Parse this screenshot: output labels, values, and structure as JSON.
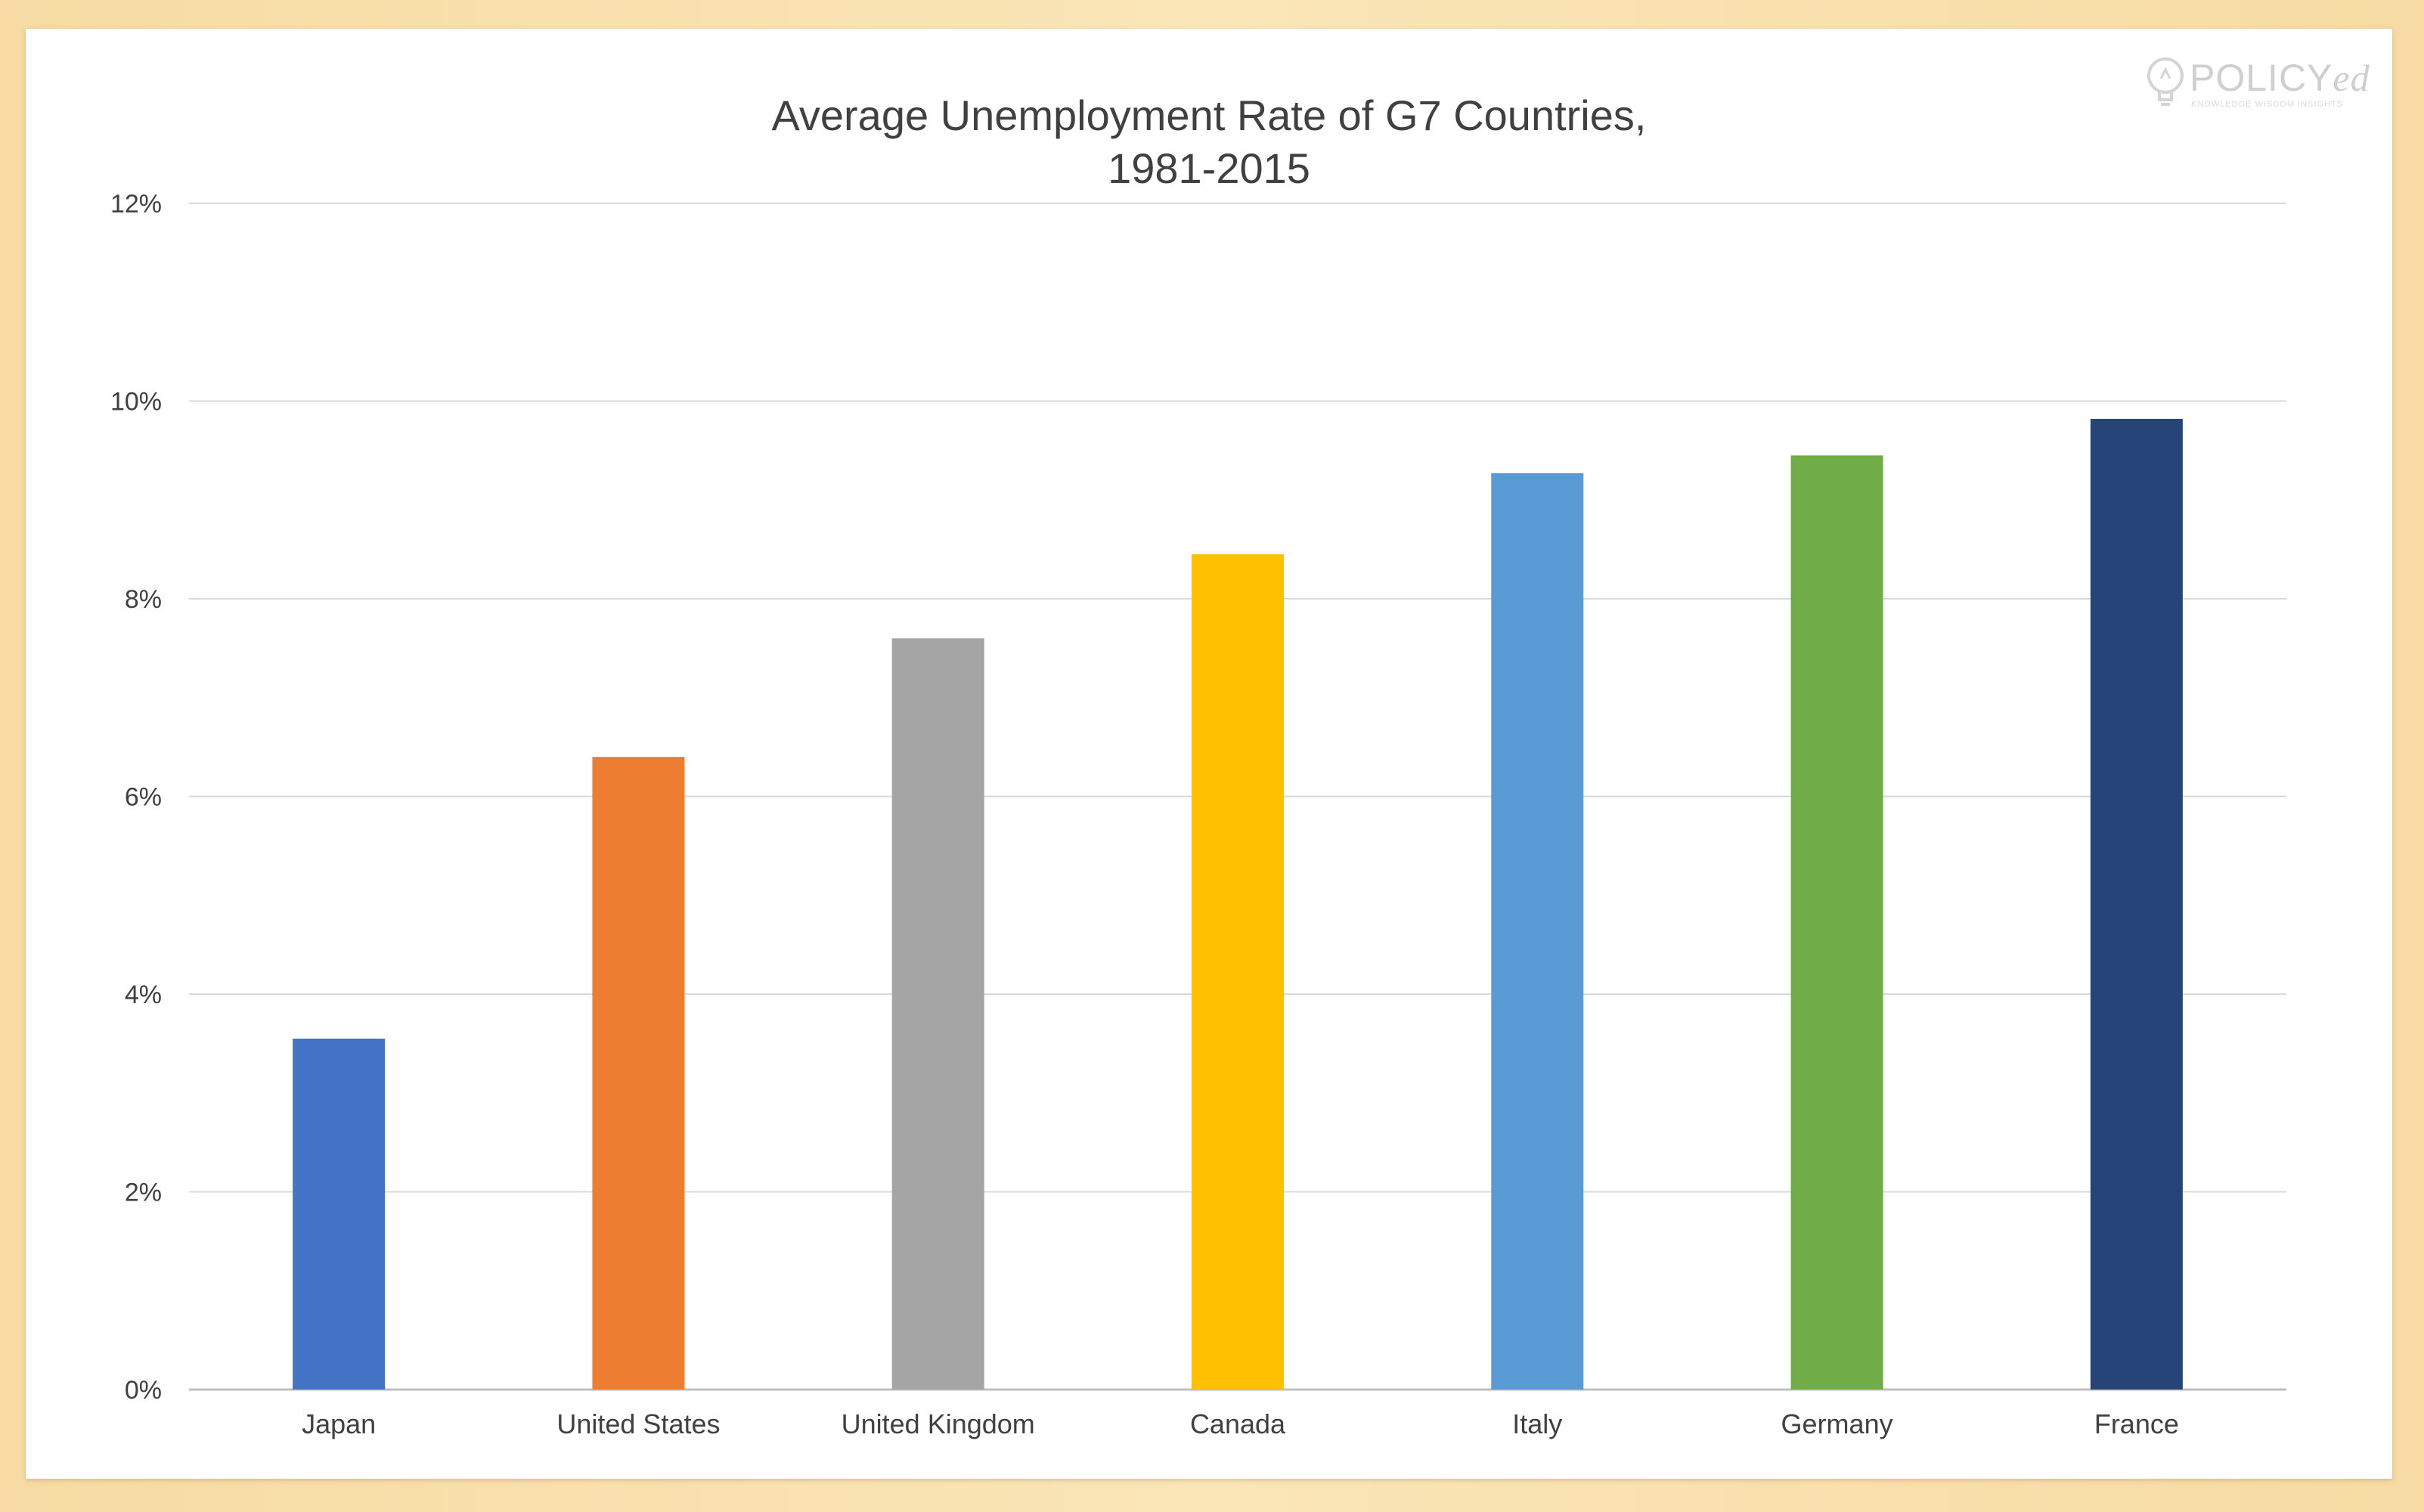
{
  "logo": {
    "brand": "POLICY",
    "brand_suffix": "ed",
    "tagline": "KNOWLEDGE WISDOM INSIGHTS"
  },
  "chart_data": {
    "type": "bar",
    "title_lines": [
      "Average Unemployment Rate of G7 Countries,",
      "1981-2015"
    ],
    "xlabel": "",
    "ylabel": "",
    "categories": [
      "Japan",
      "United States",
      "United Kingdom",
      "Canada",
      "Italy",
      "Germany",
      "France"
    ],
    "values": [
      3.55,
      6.4,
      7.6,
      8.45,
      9.27,
      9.45,
      9.82
    ],
    "colors": [
      "#4472c4",
      "#ed7d31",
      "#a5a5a5",
      "#ffc000",
      "#5b9bd5",
      "#70ad47",
      "#264478"
    ],
    "ylim": [
      0,
      12
    ],
    "yticks": [
      0,
      2,
      4,
      6,
      8,
      10,
      12
    ],
    "ytick_labels": [
      "0%",
      "2%",
      "4%",
      "6%",
      "8%",
      "10%",
      "12%"
    ],
    "grid": true,
    "legend": "none"
  }
}
